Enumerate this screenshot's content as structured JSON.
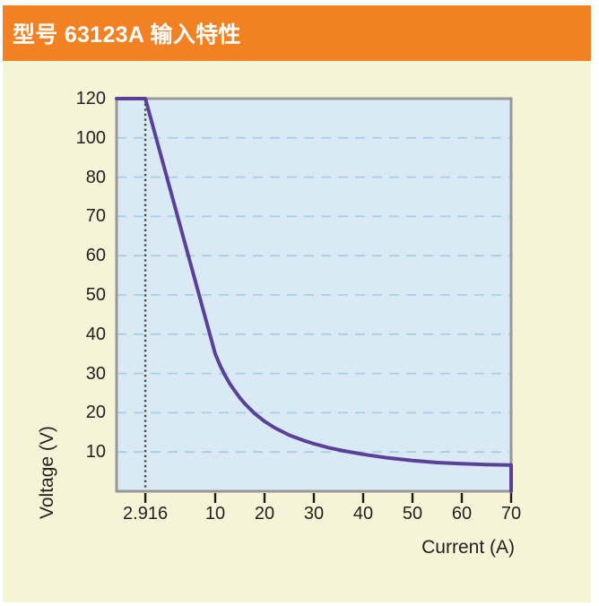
{
  "header": {
    "title": "型号 63123A 输入特性"
  },
  "chart_data": {
    "type": "line",
    "title": "型号 63123A 输入特性",
    "xlabel": "Current (A)",
    "ylabel": "Voltage (V)",
    "x_axis": {
      "min": 0,
      "max": 70,
      "tick_values": [
        2.916,
        10,
        20,
        30,
        40,
        50,
        60,
        70
      ],
      "tick_labels": [
        "2.916",
        "10",
        "20",
        "30",
        "40",
        "50",
        "60",
        "70"
      ]
    },
    "y_axis": {
      "min": 0,
      "max": 120,
      "tick_values": [
        10,
        20,
        30,
        40,
        50,
        60,
        70,
        80,
        100,
        120
      ],
      "tick_labels": [
        "10",
        "20",
        "30",
        "40",
        "50",
        "60",
        "70",
        "80",
        "100",
        "120"
      ]
    },
    "grid": "horizontal-dashed",
    "legend": "none",
    "annotations": [
      {
        "type": "vline",
        "x": 2.916,
        "style": "dotted"
      }
    ],
    "series": [
      {
        "name": "input-characteristic",
        "color": "#5a4197",
        "points": [
          [
            0,
            120
          ],
          [
            2.916,
            120
          ],
          [
            10,
            35
          ],
          [
            11,
            32
          ],
          [
            12,
            29.5
          ],
          [
            13,
            27.3
          ],
          [
            14,
            25.5
          ],
          [
            15,
            23.8
          ],
          [
            16,
            22.3
          ],
          [
            18,
            19.8
          ],
          [
            20,
            17.8
          ],
          [
            22,
            16.2
          ],
          [
            25,
            14.3
          ],
          [
            28,
            12.9
          ],
          [
            30,
            12.1
          ],
          [
            33,
            11.1
          ],
          [
            36,
            10.3
          ],
          [
            40,
            9.4
          ],
          [
            45,
            8.5
          ],
          [
            50,
            7.8
          ],
          [
            55,
            7.3
          ],
          [
            60,
            7.0
          ],
          [
            65,
            6.8
          ],
          [
            70,
            6.7
          ],
          [
            70,
            0
          ]
        ]
      }
    ],
    "colors": {
      "header_bg": "#f18122",
      "header_text": "#ffffff",
      "page_bg": "#f5f4d6",
      "plot_bg": "#daeaf4",
      "grid": "#a6cfe5",
      "border": "#97989a",
      "dotted_line": "#4c4c4c",
      "tick_mark": "#1a1a1a",
      "tick_text": "#231f20"
    }
  }
}
